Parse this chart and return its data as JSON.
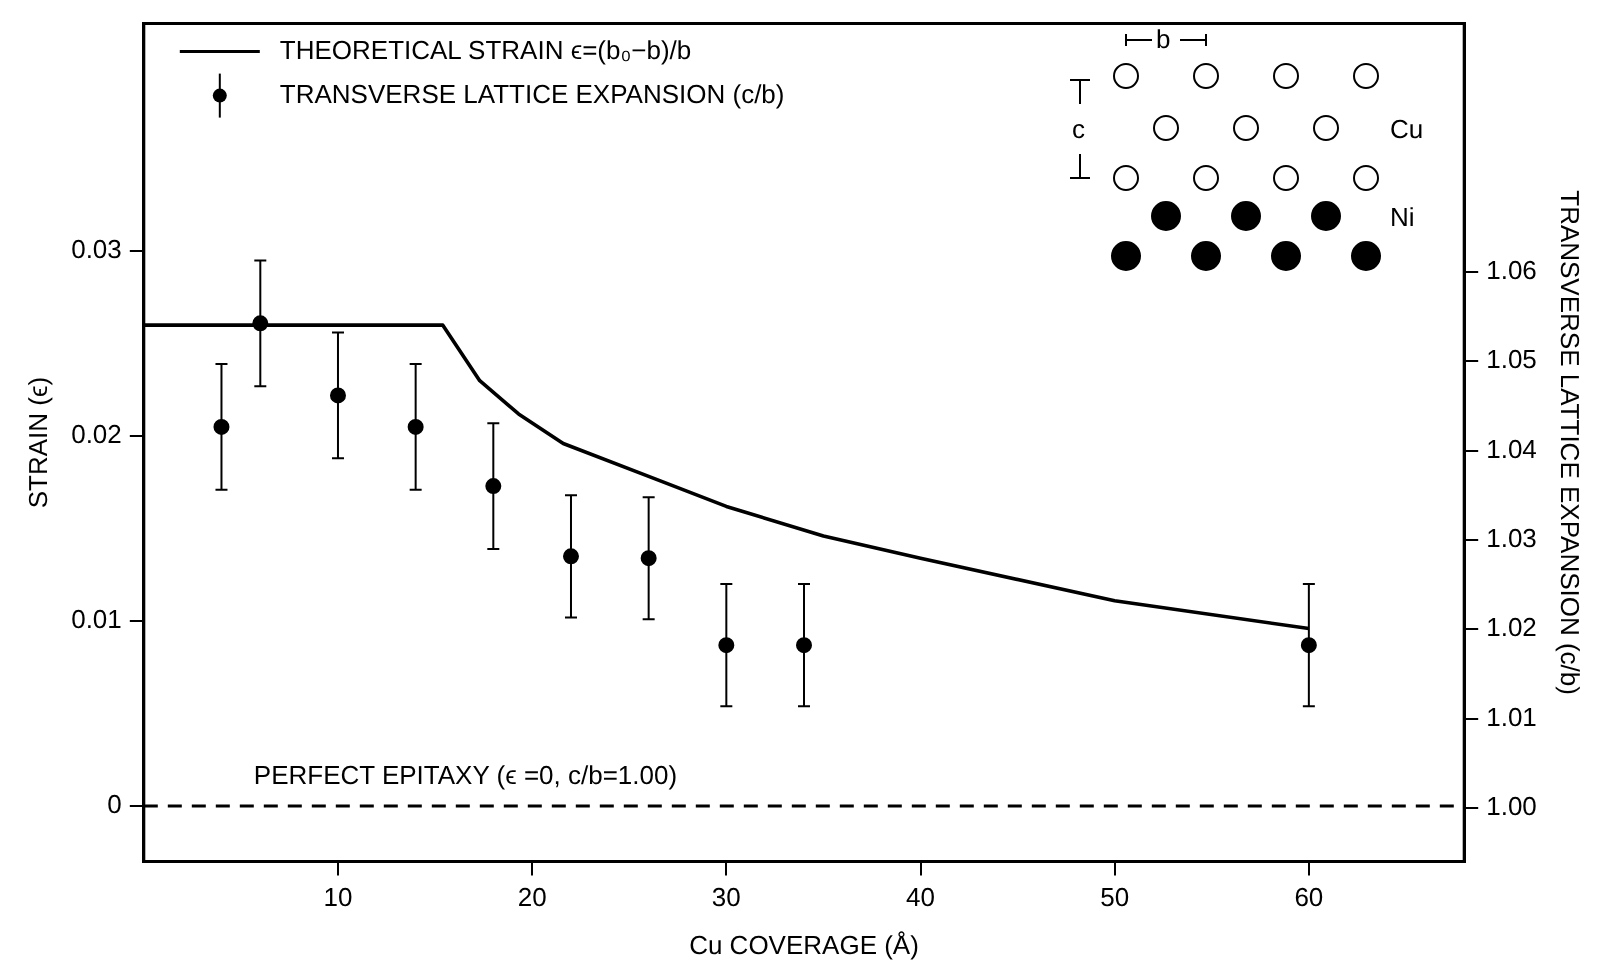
{
  "chart_data": {
    "type": "scatter",
    "xlabel": "Cu COVERAGE (Å)",
    "ylabel": "STRAIN (ϵ)",
    "y2label": "TRANSVERSE LATTICE EXPANSION (c/b)",
    "xlim": [
      0,
      68
    ],
    "xticks": [
      10,
      20,
      30,
      40,
      50,
      60
    ],
    "ylim": [
      -0.003,
      0.0423
    ],
    "yticks": [
      0,
      0.01,
      0.02,
      0.03
    ],
    "y2lim": [
      0.994,
      1.0878
    ],
    "y2ticks": [
      {
        "value": 1.0,
        "label": "1.00"
      },
      1.01,
      1.02,
      1.03,
      1.04,
      1.05,
      1.06
    ],
    "grid": false,
    "legend": "top left",
    "series": [
      {
        "name": "THEORETICAL STRAIN ϵ=(b₀−b)/b",
        "type": "line",
        "color": "#000000",
        "marker": "none",
        "line_style": "solid",
        "x": [
          0,
          15.4,
          17.3,
          19.3,
          21.6,
          26.3,
          30,
          35,
          40,
          50,
          60
        ],
        "values": [
          0.026,
          0.026,
          0.023,
          0.0212,
          0.0196,
          0.0177,
          0.0162,
          0.0146,
          0.0134,
          0.0111,
          0.0096
        ]
      },
      {
        "name": "TRANSVERSE LATTICE EXPANSION (c/b)",
        "color": "#000000",
        "marker": "circle",
        "x": [
          4,
          6,
          10,
          14,
          18,
          22,
          26,
          30,
          34,
          60
        ],
        "values": [
          0.0205,
          0.0261,
          0.0222,
          0.0205,
          0.0173,
          0.0135,
          0.0134,
          0.0087,
          0.0087,
          0.0087
        ],
        "errors": [
          0.0034,
          0.0034,
          0.0034,
          0.0034,
          0.0034,
          0.0033,
          0.0033,
          0.0033,
          0.0033,
          0.0033
        ]
      }
    ],
    "ref_lines": [
      {
        "axis": "y",
        "value": 0,
        "label": "PERFECT EPITAXY (ϵ =0, c/b=1.00)",
        "color": "#000000",
        "line_style": "dashed"
      }
    ],
    "annotations": [
      "b",
      "c",
      "Cu",
      "Ni"
    ]
  }
}
